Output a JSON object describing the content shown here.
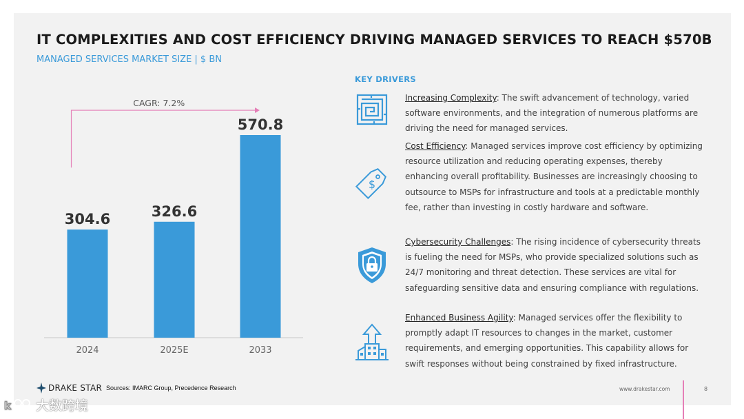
{
  "title": "IT COMPLEXITIES AND COST EFFICIENCY DRIVING MANAGED SERVICES TO REACH $570B",
  "subtitle": "MANAGED SERVICES MARKET SIZE | $ BN",
  "chart_data": {
    "type": "bar",
    "categories": [
      "2024",
      "2025E",
      "2033"
    ],
    "values": [
      304.6,
      326.6,
      570.8
    ],
    "data_labels": [
      "304.6",
      "326.6",
      "570.8"
    ],
    "annotation": "CAGR: 7.2%",
    "ylim": [
      0,
      570.8
    ],
    "bar_color": "#3a9ad9",
    "annotation_color": "#e57fb7",
    "grid": false,
    "legend": "none"
  },
  "drivers": {
    "heading": "KEY DRIVERS",
    "items": [
      {
        "name": "Increasing Complexity",
        "text": ": The swift advancement of technology, varied software environments, and the integration of numerous platforms are driving the need for managed services.",
        "icon": "maze-icon"
      },
      {
        "name": "Cost Efficiency",
        "text": ": Managed services improve cost efficiency by optimizing resource utilization and reducing operating expenses, thereby enhancing overall profitability. Businesses are increasingly choosing to outsource to MSPs for infrastructure and tools at a predictable monthly fee, rather than investing in costly hardware and software.",
        "icon": "price-tag-icon"
      },
      {
        "name": "Cybersecurity Challenges",
        "text": ": The rising incidence of cybersecurity threats is fueling the need for MSPs, who provide specialized solutions such as 24/7 monitoring and threat detection. These services are vital for safeguarding sensitive data and ensuring compliance with regulations.",
        "icon": "shield-lock-icon"
      },
      {
        "name": "Enhanced Business Agility",
        "text": ": Managed services offer the flexibility to promptly adapt IT resources to changes in the market, customer requirements, and emerging opportunities. This capability allows for swift responses without being constrained by fixed infrastructure.",
        "icon": "growth-buildings-icon"
      }
    ]
  },
  "footer": {
    "logo_text": "DRAKE STAR",
    "sources": "Sources: IMARC Group, Precedence Research",
    "website": "www.drakestar.com",
    "page_number": "8"
  },
  "watermark": "大数跨境",
  "colors": {
    "accent": "#3a9ad9",
    "pink": "#e57fb7",
    "text": "#404040"
  }
}
